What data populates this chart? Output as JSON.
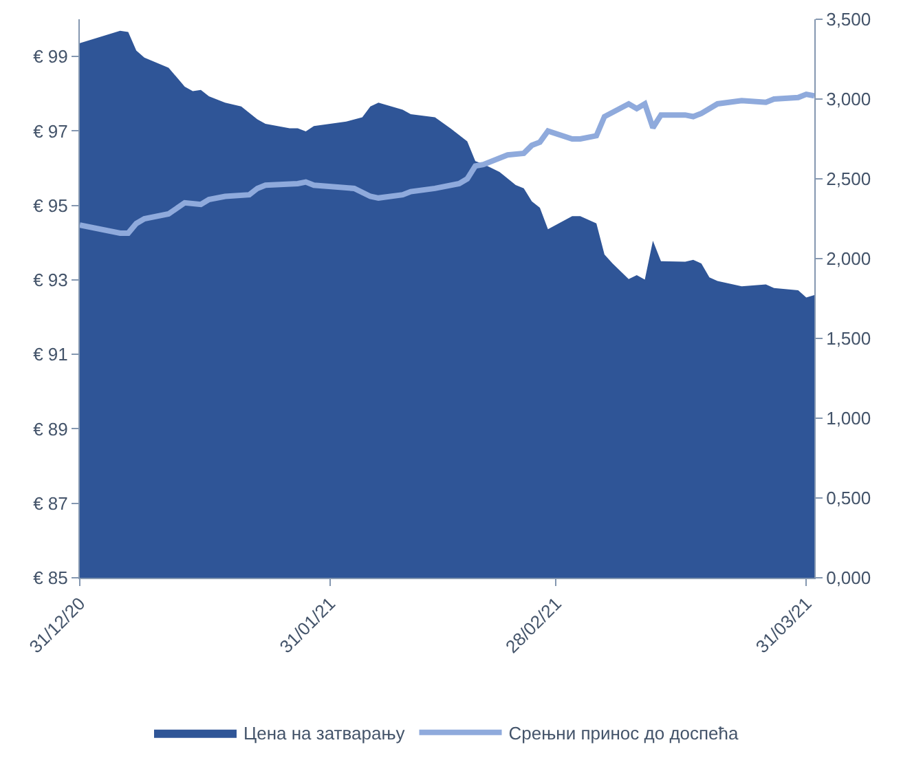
{
  "chart_data": {
    "type": "area",
    "series": [
      {
        "name": "Цена на затварању",
        "color": "#2f5597",
        "x": [
          "2020-12-31",
          "2021-01-05",
          "2021-01-06",
          "2021-01-07",
          "2021-01-08",
          "2021-01-11",
          "2021-01-13",
          "2021-01-14",
          "2021-01-15",
          "2021-01-16",
          "2021-01-18",
          "2021-01-20",
          "2021-01-22",
          "2021-01-23",
          "2021-01-26",
          "2021-01-27",
          "2021-01-28",
          "2021-01-29",
          "2021-02-02",
          "2021-02-04",
          "2021-02-05",
          "2021-02-06",
          "2021-02-09",
          "2021-02-10",
          "2021-02-13",
          "2021-02-15",
          "2021-02-17",
          "2021-02-18",
          "2021-02-19",
          "2021-02-21",
          "2021-02-23",
          "2021-02-24",
          "2021-02-25",
          "2021-02-26",
          "2021-02-27",
          "2021-03-02",
          "2021-03-03",
          "2021-03-05",
          "2021-03-06",
          "2021-03-07",
          "2021-03-09",
          "2021-03-10",
          "2021-03-11",
          "2021-03-12",
          "2021-03-13",
          "2021-03-16",
          "2021-03-17",
          "2021-03-18",
          "2021-03-19",
          "2021-03-20",
          "2021-03-23",
          "2021-03-26",
          "2021-03-27",
          "2021-03-30",
          "2021-03-31",
          "2021-04-01"
        ],
        "values": [
          99.36,
          99.69,
          99.66,
          99.16,
          98.97,
          98.7,
          98.19,
          98.07,
          98.1,
          97.93,
          97.76,
          97.66,
          97.31,
          97.19,
          97.07,
          97.07,
          96.99,
          97.13,
          97.25,
          97.37,
          97.66,
          97.76,
          97.57,
          97.45,
          97.37,
          97.06,
          96.72,
          96.19,
          96.11,
          95.9,
          95.55,
          95.46,
          95.11,
          94.94,
          94.36,
          94.71,
          94.71,
          94.52,
          93.68,
          93.44,
          93.02,
          93.13,
          93.01,
          94.05,
          93.5,
          93.49,
          93.54,
          93.44,
          93.07,
          92.97,
          92.83,
          92.88,
          92.78,
          92.72,
          92.53,
          92.59
        ]
      },
      {
        "name": "Срењни принос до доспећа",
        "type": "line",
        "axis": "y2",
        "color": "#8faadc",
        "x": [
          "2020-12-31",
          "2021-01-05",
          "2021-01-06",
          "2021-01-07",
          "2021-01-08",
          "2021-01-11",
          "2021-01-13",
          "2021-01-15",
          "2021-01-16",
          "2021-01-18",
          "2021-01-21",
          "2021-01-22",
          "2021-01-23",
          "2021-01-27",
          "2021-01-28",
          "2021-01-29",
          "2021-02-03",
          "2021-02-05",
          "2021-02-06",
          "2021-02-09",
          "2021-02-10",
          "2021-02-13",
          "2021-02-16",
          "2021-02-17",
          "2021-02-18",
          "2021-02-19",
          "2021-02-22",
          "2021-02-24",
          "2021-02-25",
          "2021-02-26",
          "2021-02-27",
          "2021-03-02",
          "2021-03-03",
          "2021-03-05",
          "2021-03-06",
          "2021-03-09",
          "2021-03-10",
          "2021-03-11",
          "2021-03-12",
          "2021-03-13",
          "2021-03-16",
          "2021-03-17",
          "2021-03-18",
          "2021-03-20",
          "2021-03-23",
          "2021-03-26",
          "2021-03-27",
          "2021-03-30",
          "2021-03-31",
          "2021-04-01"
        ],
        "values": [
          2.21,
          2.16,
          2.16,
          2.22,
          2.25,
          2.28,
          2.35,
          2.34,
          2.37,
          2.39,
          2.4,
          2.44,
          2.46,
          2.47,
          2.48,
          2.46,
          2.44,
          2.39,
          2.38,
          2.4,
          2.42,
          2.44,
          2.47,
          2.5,
          2.58,
          2.59,
          2.65,
          2.66,
          2.71,
          2.73,
          2.8,
          2.75,
          2.75,
          2.77,
          2.89,
          2.97,
          2.94,
          2.97,
          2.82,
          2.9,
          2.9,
          2.89,
          2.91,
          2.97,
          2.99,
          2.98,
          3.0,
          3.01,
          3.03,
          3.02
        ]
      }
    ],
    "xlim": [
      "2020-12-31",
      "2021-04-01"
    ],
    "xticks": [
      {
        "value": "2020-12-31",
        "label": "31/12/20"
      },
      {
        "value": "2021-01-31",
        "label": "31/01/21"
      },
      {
        "value": "2021-02-28",
        "label": "28/02/21"
      },
      {
        "value": "2021-03-31",
        "label": "31/03/21"
      }
    ],
    "ylim": [
      85,
      100
    ],
    "yticks": [
      {
        "value": 85,
        "label": "€ 85"
      },
      {
        "value": 87,
        "label": "€ 87"
      },
      {
        "value": 89,
        "label": "€ 89"
      },
      {
        "value": 91,
        "label": "€ 91"
      },
      {
        "value": 93,
        "label": "€ 93"
      },
      {
        "value": 95,
        "label": "€ 95"
      },
      {
        "value": 97,
        "label": "€ 97"
      },
      {
        "value": 99,
        "label": "€ 99"
      }
    ],
    "y2lim": [
      0,
      3.5
    ],
    "y2ticks": [
      {
        "value": 0,
        "label": "0,000"
      },
      {
        "value": 0.5,
        "label": "0,500"
      },
      {
        "value": 1,
        "label": "1,000"
      },
      {
        "value": 1.5,
        "label": "1,500"
      },
      {
        "value": 2,
        "label": "2,000"
      },
      {
        "value": 2.5,
        "label": "2,500"
      },
      {
        "value": 3,
        "label": "3,000"
      },
      {
        "value": 3.5,
        "label": "3,500"
      }
    ],
    "grid": false,
    "legend": "bottom",
    "line_style": "solid",
    "marker": "none"
  }
}
